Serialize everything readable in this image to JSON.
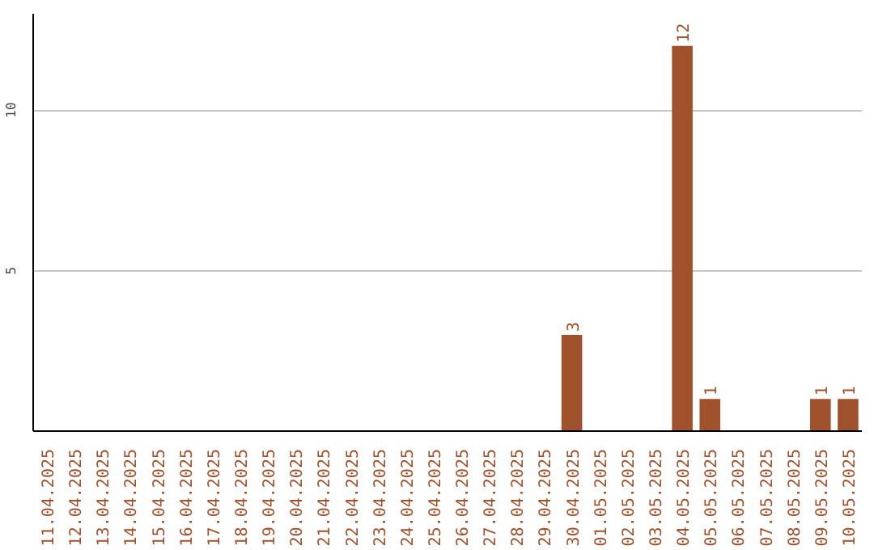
{
  "chart_data": {
    "type": "bar",
    "categories": [
      "11.04.2025",
      "12.04.2025",
      "13.04.2025",
      "14.04.2025",
      "15.04.2025",
      "16.04.2025",
      "17.04.2025",
      "18.04.2025",
      "19.04.2025",
      "20.04.2025",
      "21.04.2025",
      "22.04.2025",
      "23.04.2025",
      "24.04.2025",
      "25.04.2025",
      "26.04.2025",
      "27.04.2025",
      "28.04.2025",
      "29.04.2025",
      "30.04.2025",
      "01.05.2025",
      "02.05.2025",
      "03.05.2025",
      "04.05.2025",
      "05.05.2025",
      "06.05.2025",
      "07.05.2025",
      "08.05.2025",
      "09.05.2025",
      "10.05.2025"
    ],
    "values": [
      0,
      0,
      0,
      0,
      0,
      0,
      0,
      0,
      0,
      0,
      0,
      0,
      0,
      0,
      0,
      0,
      0,
      0,
      0,
      3,
      0,
      0,
      0,
      12,
      1,
      0,
      0,
      0,
      1,
      1
    ],
    "value_labels": [
      null,
      null,
      null,
      null,
      null,
      null,
      null,
      null,
      null,
      null,
      null,
      null,
      null,
      null,
      null,
      null,
      null,
      null,
      null,
      "3",
      null,
      null,
      null,
      "12",
      "1",
      null,
      null,
      null,
      "1",
      "1"
    ],
    "color": "#a0522d",
    "ylim": [
      0,
      13
    ],
    "yticks": [
      5,
      10
    ],
    "grid": "y"
  }
}
